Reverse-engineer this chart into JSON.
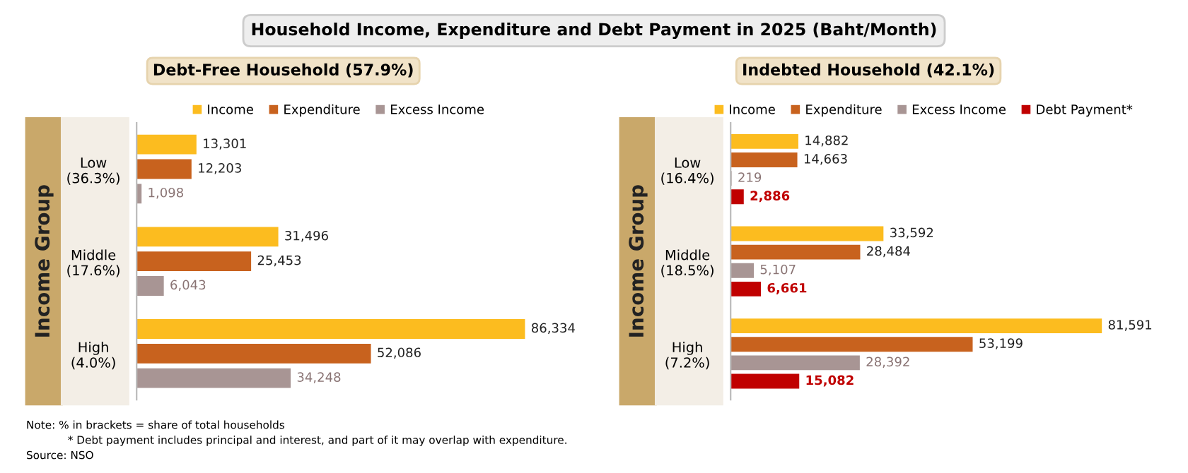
{
  "chart_data": [
    {
      "type": "bar",
      "orientation": "horizontal",
      "title": "Household Income, Expenditure and Debt Payment in 2025 (Baht/Month)",
      "subtitle": "Debt-Free Household (57.9%)",
      "ylabel": "Income Group",
      "categories": [
        "Low\n(36.3%)",
        "Middle\n(17.6%)",
        "High\n(4.0%)"
      ],
      "legend": "top",
      "grid": false,
      "series": [
        {
          "name": "Income",
          "color": "#fcbc1f",
          "values": [
            13301,
            31496,
            86334
          ],
          "value_labels": [
            "13,301",
            "31,496",
            "86,334"
          ]
        },
        {
          "name": "Expenditure",
          "color": "#c8621e",
          "values": [
            12203,
            25453,
            52086
          ],
          "value_labels": [
            "12,203",
            "25,453",
            "52,086"
          ]
        },
        {
          "name": "Excess Income",
          "color": "#a89594",
          "values": [
            1098,
            6043,
            34248
          ],
          "value_labels": [
            "1,098",
            "6,043",
            "34,248"
          ]
        }
      ],
      "annotations": [
        "Note: % in brackets = share of total households",
        "* Debt payment includes principal and interest, and part of it may overlap with expenditure.",
        "Source: NSO"
      ]
    },
    {
      "type": "bar",
      "orientation": "horizontal",
      "subtitle": "Indebted Household (42.1%)",
      "ylabel": "Income Group",
      "categories": [
        "Low\n(16.4%)",
        "Middle\n(18.5%)",
        "High\n(7.2%)"
      ],
      "legend": "top",
      "grid": false,
      "series": [
        {
          "name": "Income",
          "color": "#fcbc1f",
          "values": [
            14882,
            33592,
            81591
          ],
          "value_labels": [
            "14,882",
            "33,592",
            "81,591"
          ]
        },
        {
          "name": "Expenditure",
          "color": "#c8621e",
          "values": [
            14663,
            28484,
            53199
          ],
          "value_labels": [
            "14,663",
            "28,484",
            "53,199"
          ]
        },
        {
          "name": "Excess Income",
          "color": "#a89594",
          "values": [
            219,
            5107,
            28392
          ],
          "value_labels": [
            "219",
            "5,107",
            "28,392"
          ]
        },
        {
          "name": "Debt Payment*",
          "color": "#c00000",
          "values": [
            2886,
            6661,
            15082
          ],
          "value_labels": [
            "2,886",
            "6,661",
            "15,082"
          ]
        }
      ]
    }
  ]
}
